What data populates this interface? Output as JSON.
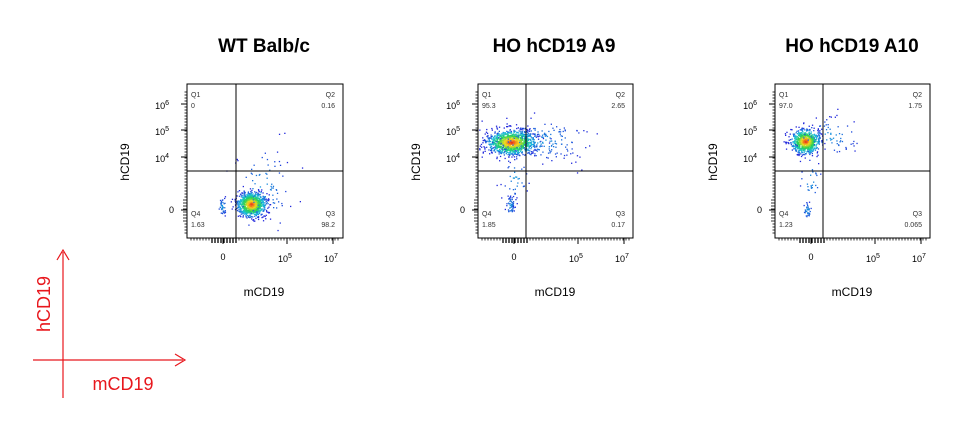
{
  "chart_data": [
    {
      "type": "scatter",
      "title": "WT Balb/c",
      "xlabel": "mCD19",
      "ylabel": "hCD19",
      "x_ticks": [
        "0",
        "10^5",
        "10^7"
      ],
      "y_ticks": [
        "0",
        "10^4",
        "10^5",
        "10^6"
      ],
      "quadrants": [
        {
          "name": "Q1",
          "value": "0"
        },
        {
          "name": "Q2",
          "value": "0.16"
        },
        {
          "name": "Q3",
          "value": "98.2"
        },
        {
          "name": "Q4",
          "value": "1.63"
        }
      ],
      "populations": [
        {
          "x_center": "2x10^4",
          "y_center": "0",
          "spread": "tight",
          "percent_of_events": 98.2
        },
        {
          "x_center": "0",
          "y_center": "0",
          "spread": "small",
          "percent_of_events": 1.63
        }
      ]
    },
    {
      "type": "scatter",
      "title": "HO hCD19 A9",
      "xlabel": "mCD19",
      "ylabel": "hCD19",
      "x_ticks": [
        "0",
        "10^5",
        "10^7"
      ],
      "y_ticks": [
        "0",
        "10^4",
        "10^5",
        "10^6"
      ],
      "quadrants": [
        {
          "name": "Q1",
          "value": "95.3"
        },
        {
          "name": "Q2",
          "value": "2.65"
        },
        {
          "name": "Q3",
          "value": "0.17"
        },
        {
          "name": "Q4",
          "value": "1.85"
        }
      ],
      "populations": [
        {
          "x_center": "0",
          "y_center": "5x10^4",
          "spread": "wide",
          "percent_of_events": 95.3
        },
        {
          "x_center": "0",
          "y_center": "0",
          "spread": "small",
          "percent_of_events": 1.85
        }
      ]
    },
    {
      "type": "scatter",
      "title": "HO hCD19 A10",
      "xlabel": "mCD19",
      "ylabel": "hCD19",
      "x_ticks": [
        "0",
        "10^5",
        "10^7"
      ],
      "y_ticks": [
        "0",
        "10^4",
        "10^5",
        "10^6"
      ],
      "quadrants": [
        {
          "name": "Q1",
          "value": "97.0"
        },
        {
          "name": "Q2",
          "value": "1.75"
        },
        {
          "name": "Q3",
          "value": "0.065"
        },
        {
          "name": "Q4",
          "value": "1.23"
        }
      ],
      "populations": [
        {
          "x_center": "0",
          "y_center": "5x10^4",
          "spread": "medium",
          "percent_of_events": 97.0
        },
        {
          "x_center": "0",
          "y_center": "0",
          "spread": "small",
          "percent_of_events": 1.23
        }
      ]
    }
  ],
  "legend": {
    "y_label": "hCD19",
    "x_label": "mCD19",
    "color": "#e8171d"
  },
  "colors": {
    "density_low": "#1f2ad6",
    "density_mid": "#18c9c0",
    "density_high": "#e8221c",
    "gate_line": "#000000"
  }
}
